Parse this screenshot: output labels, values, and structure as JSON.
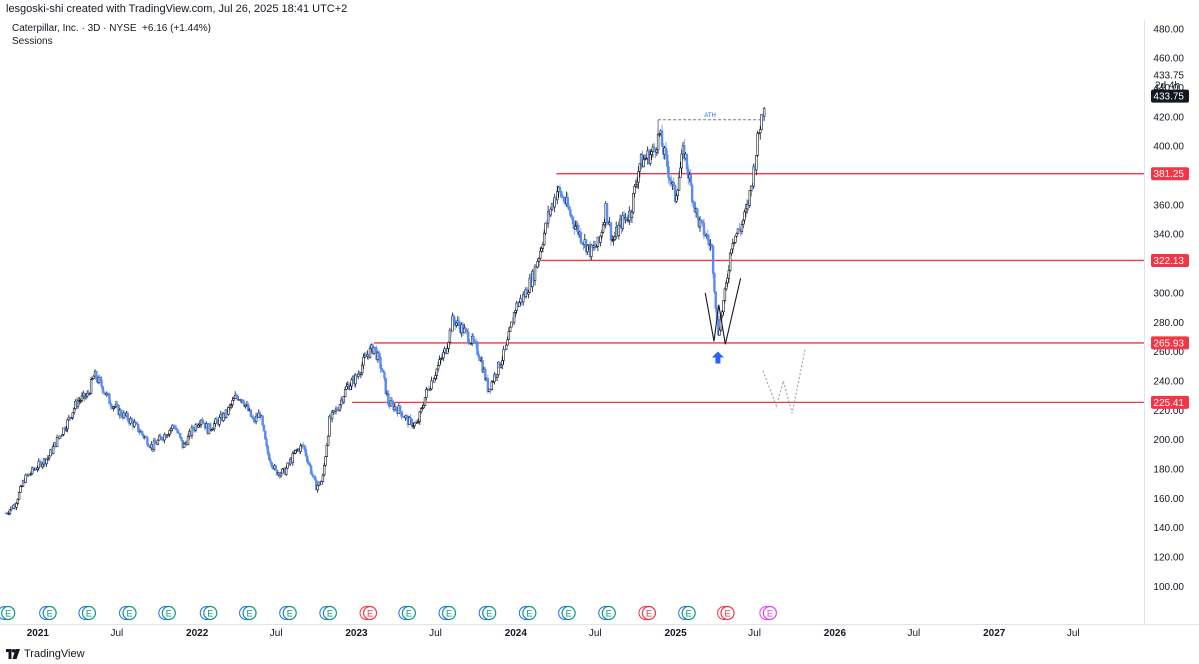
{
  "header": {
    "created_text": "lesgoski-shi created with TradingView.com, Jul 26, 2025 18:41 UTC+2",
    "symbol_line": "Caterpillar, Inc. · 3D · NYSE",
    "change": "+6.16 (+1.44%)",
    "sessions": "Sessions"
  },
  "footer": {
    "brand": "TradingView"
  },
  "colors": {
    "candle_up": "#131722",
    "candle_down": "#5b8def",
    "support_line": "#f23645",
    "arrow": "#2962ff",
    "ath_line": "#787b86"
  },
  "chart_data": {
    "type": "candlestick",
    "ylim": [
      88,
      486
    ],
    "xlim": [
      "2020-10-20",
      "2027-12-01"
    ],
    "y_ticks": [
      "100.00",
      "120.00",
      "140.00",
      "160.00",
      "180.00",
      "200.00",
      "220.00",
      "240.00",
      "260.00",
      "280.00",
      "300.00",
      "320.00",
      "340.00",
      "360.00",
      "380.00",
      "400.00",
      "420.00",
      "440.00",
      "460.00",
      "480.00"
    ],
    "x_ticks": [
      {
        "label": "2021",
        "date": "2021-01-01",
        "bold": true
      },
      {
        "label": "Jul",
        "date": "2021-07-01",
        "bold": false
      },
      {
        "label": "2022",
        "date": "2022-01-01",
        "bold": true
      },
      {
        "label": "Jul",
        "date": "2022-07-01",
        "bold": false
      },
      {
        "label": "2023",
        "date": "2023-01-01",
        "bold": true
      },
      {
        "label": "Jul",
        "date": "2023-07-01",
        "bold": false
      },
      {
        "label": "2024",
        "date": "2024-01-01",
        "bold": true
      },
      {
        "label": "Jul",
        "date": "2024-07-01",
        "bold": false
      },
      {
        "label": "2025",
        "date": "2025-01-01",
        "bold": true
      },
      {
        "label": "Jul",
        "date": "2025-07-01",
        "bold": false
      },
      {
        "label": "2026",
        "date": "2026-01-01",
        "bold": true
      },
      {
        "label": "Jul",
        "date": "2026-07-01",
        "bold": false
      },
      {
        "label": "2027",
        "date": "2027-01-01",
        "bold": true
      },
      {
        "label": "Jul",
        "date": "2027-07-01",
        "bold": false
      }
    ],
    "price_path": [
      [
        "2020-10-20",
        150
      ],
      [
        "2020-11-10",
        156
      ],
      [
        "2020-12-01",
        173
      ],
      [
        "2020-12-31",
        182
      ],
      [
        "2021-01-25",
        188
      ],
      [
        "2021-02-15",
        200
      ],
      [
        "2021-03-10",
        212
      ],
      [
        "2021-04-01",
        226
      ],
      [
        "2021-04-25",
        230
      ],
      [
        "2021-05-10",
        244
      ],
      [
        "2021-05-25",
        238
      ],
      [
        "2021-06-15",
        226
      ],
      [
        "2021-07-10",
        218
      ],
      [
        "2021-08-05",
        212
      ],
      [
        "2021-08-25",
        205
      ],
      [
        "2021-09-20",
        195
      ],
      [
        "2021-10-20",
        204
      ],
      [
        "2021-11-10",
        210
      ],
      [
        "2021-11-30",
        195
      ],
      [
        "2021-12-20",
        206
      ],
      [
        "2022-01-10",
        215
      ],
      [
        "2022-01-25",
        207
      ],
      [
        "2022-02-15",
        212
      ],
      [
        "2022-03-10",
        218
      ],
      [
        "2022-04-01",
        230
      ],
      [
        "2022-04-15",
        228
      ],
      [
        "2022-05-10",
        212
      ],
      [
        "2022-05-25",
        218
      ],
      [
        "2022-06-10",
        192
      ],
      [
        "2022-06-30",
        178
      ],
      [
        "2022-07-20",
        178
      ],
      [
        "2022-08-15",
        192
      ],
      [
        "2022-09-01",
        196
      ],
      [
        "2022-09-30",
        168
      ],
      [
        "2022-10-15",
        172
      ],
      [
        "2022-10-31",
        213
      ],
      [
        "2022-11-20",
        222
      ],
      [
        "2022-12-10",
        236
      ],
      [
        "2022-12-31",
        242
      ],
      [
        "2023-01-25",
        258
      ],
      [
        "2023-02-10",
        263
      ],
      [
        "2023-02-28",
        248
      ],
      [
        "2023-03-15",
        225
      ],
      [
        "2023-04-10",
        220
      ],
      [
        "2023-05-01",
        212
      ],
      [
        "2023-05-20",
        210
      ],
      [
        "2023-06-10",
        232
      ],
      [
        "2023-07-01",
        246
      ],
      [
        "2023-07-25",
        262
      ],
      [
        "2023-08-10",
        282
      ],
      [
        "2023-08-30",
        276
      ],
      [
        "2023-09-20",
        268
      ],
      [
        "2023-10-10",
        258
      ],
      [
        "2023-10-30",
        234
      ],
      [
        "2023-11-20",
        248
      ],
      [
        "2023-12-10",
        262
      ],
      [
        "2023-12-31",
        290
      ],
      [
        "2024-01-20",
        298
      ],
      [
        "2024-02-10",
        312
      ],
      [
        "2024-02-25",
        328
      ],
      [
        "2024-03-15",
        352
      ],
      [
        "2024-04-05",
        370
      ],
      [
        "2024-04-20",
        364
      ],
      [
        "2024-05-10",
        350
      ],
      [
        "2024-05-30",
        338
      ],
      [
        "2024-06-20",
        328
      ],
      [
        "2024-07-10",
        334
      ],
      [
        "2024-07-25",
        358
      ],
      [
        "2024-08-10",
        335
      ],
      [
        "2024-08-30",
        348
      ],
      [
        "2024-09-20",
        355
      ],
      [
        "2024-10-10",
        388
      ],
      [
        "2024-10-25",
        392
      ],
      [
        "2024-11-10",
        396
      ],
      [
        "2024-11-25",
        408
      ],
      [
        "2024-12-10",
        390
      ],
      [
        "2024-12-31",
        365
      ],
      [
        "2025-01-20",
        398
      ],
      [
        "2025-02-05",
        372
      ],
      [
        "2025-02-20",
        350
      ],
      [
        "2025-03-10",
        340
      ],
      [
        "2025-03-25",
        330
      ],
      [
        "2025-04-08",
        272
      ],
      [
        "2025-04-25",
        300
      ],
      [
        "2025-05-10",
        336
      ],
      [
        "2025-05-30",
        344
      ],
      [
        "2025-06-15",
        358
      ],
      [
        "2025-06-30",
        385
      ],
      [
        "2025-07-10",
        408
      ],
      [
        "2025-07-25",
        433.75
      ]
    ],
    "horizontal_levels": [
      {
        "price": 381.25,
        "label": "381.25",
        "from": "2024-04-03"
      },
      {
        "price": 322.13,
        "label": "322.13",
        "from": "2024-02-28"
      },
      {
        "price": 265.93,
        "label": "265.93",
        "from": "2023-02-10"
      },
      {
        "price": 225.41,
        "label": "225.41",
        "from": "2022-12-22"
      }
    ],
    "last_price": {
      "value": 433.75,
      "label": "433.75",
      "countdown_price_label": "433.75",
      "countdown": "2d 4h"
    },
    "annotations": {
      "ath": {
        "label": "ATH",
        "price": 418,
        "from": "2024-11-22",
        "to": "2025-07-18"
      },
      "w_pattern": [
        [
          "2025-03-10",
          300
        ],
        [
          "2025-03-30",
          267
        ],
        [
          "2025-04-10",
          292
        ],
        [
          "2025-04-25",
          265
        ],
        [
          "2025-05-30",
          310
        ]
      ],
      "projected_w": [
        [
          "2025-07-20",
          247
        ],
        [
          "2025-08-20",
          223
        ],
        [
          "2025-09-05",
          240
        ],
        [
          "2025-09-25",
          218
        ],
        [
          "2025-10-25",
          262
        ]
      ],
      "arrow": {
        "date": "2025-04-08",
        "price": 256
      }
    },
    "earnings_markers": [
      {
        "date": "2020-10-25",
        "label": "E",
        "kind": "past"
      },
      {
        "date": "2021-01-28",
        "label": "E",
        "kind": "past"
      },
      {
        "date": "2021-04-28",
        "label": "E",
        "kind": "past"
      },
      {
        "date": "2021-07-30",
        "label": "E",
        "kind": "past"
      },
      {
        "date": "2021-10-28",
        "label": "E",
        "kind": "past"
      },
      {
        "date": "2022-01-31",
        "label": "E",
        "kind": "past"
      },
      {
        "date": "2022-05-01",
        "label": "E",
        "kind": "past"
      },
      {
        "date": "2022-08-01",
        "label": "E",
        "kind": "past"
      },
      {
        "date": "2022-11-01",
        "label": "E",
        "kind": "past"
      },
      {
        "date": "2023-02-01",
        "label": "E",
        "kind": "miss"
      },
      {
        "date": "2023-05-01",
        "label": "E",
        "kind": "past"
      },
      {
        "date": "2023-08-01",
        "label": "E",
        "kind": "past"
      },
      {
        "date": "2023-11-01",
        "label": "E",
        "kind": "past"
      },
      {
        "date": "2024-02-01",
        "label": "E",
        "kind": "past"
      },
      {
        "date": "2024-05-01",
        "label": "E",
        "kind": "past"
      },
      {
        "date": "2024-08-01",
        "label": "E",
        "kind": "past"
      },
      {
        "date": "2024-11-01",
        "label": "E",
        "kind": "miss"
      },
      {
        "date": "2025-01-31",
        "label": "E",
        "kind": "past"
      },
      {
        "date": "2025-04-30",
        "label": "E",
        "kind": "miss"
      },
      {
        "date": "2025-08-05",
        "label": "E",
        "kind": "future"
      }
    ]
  }
}
